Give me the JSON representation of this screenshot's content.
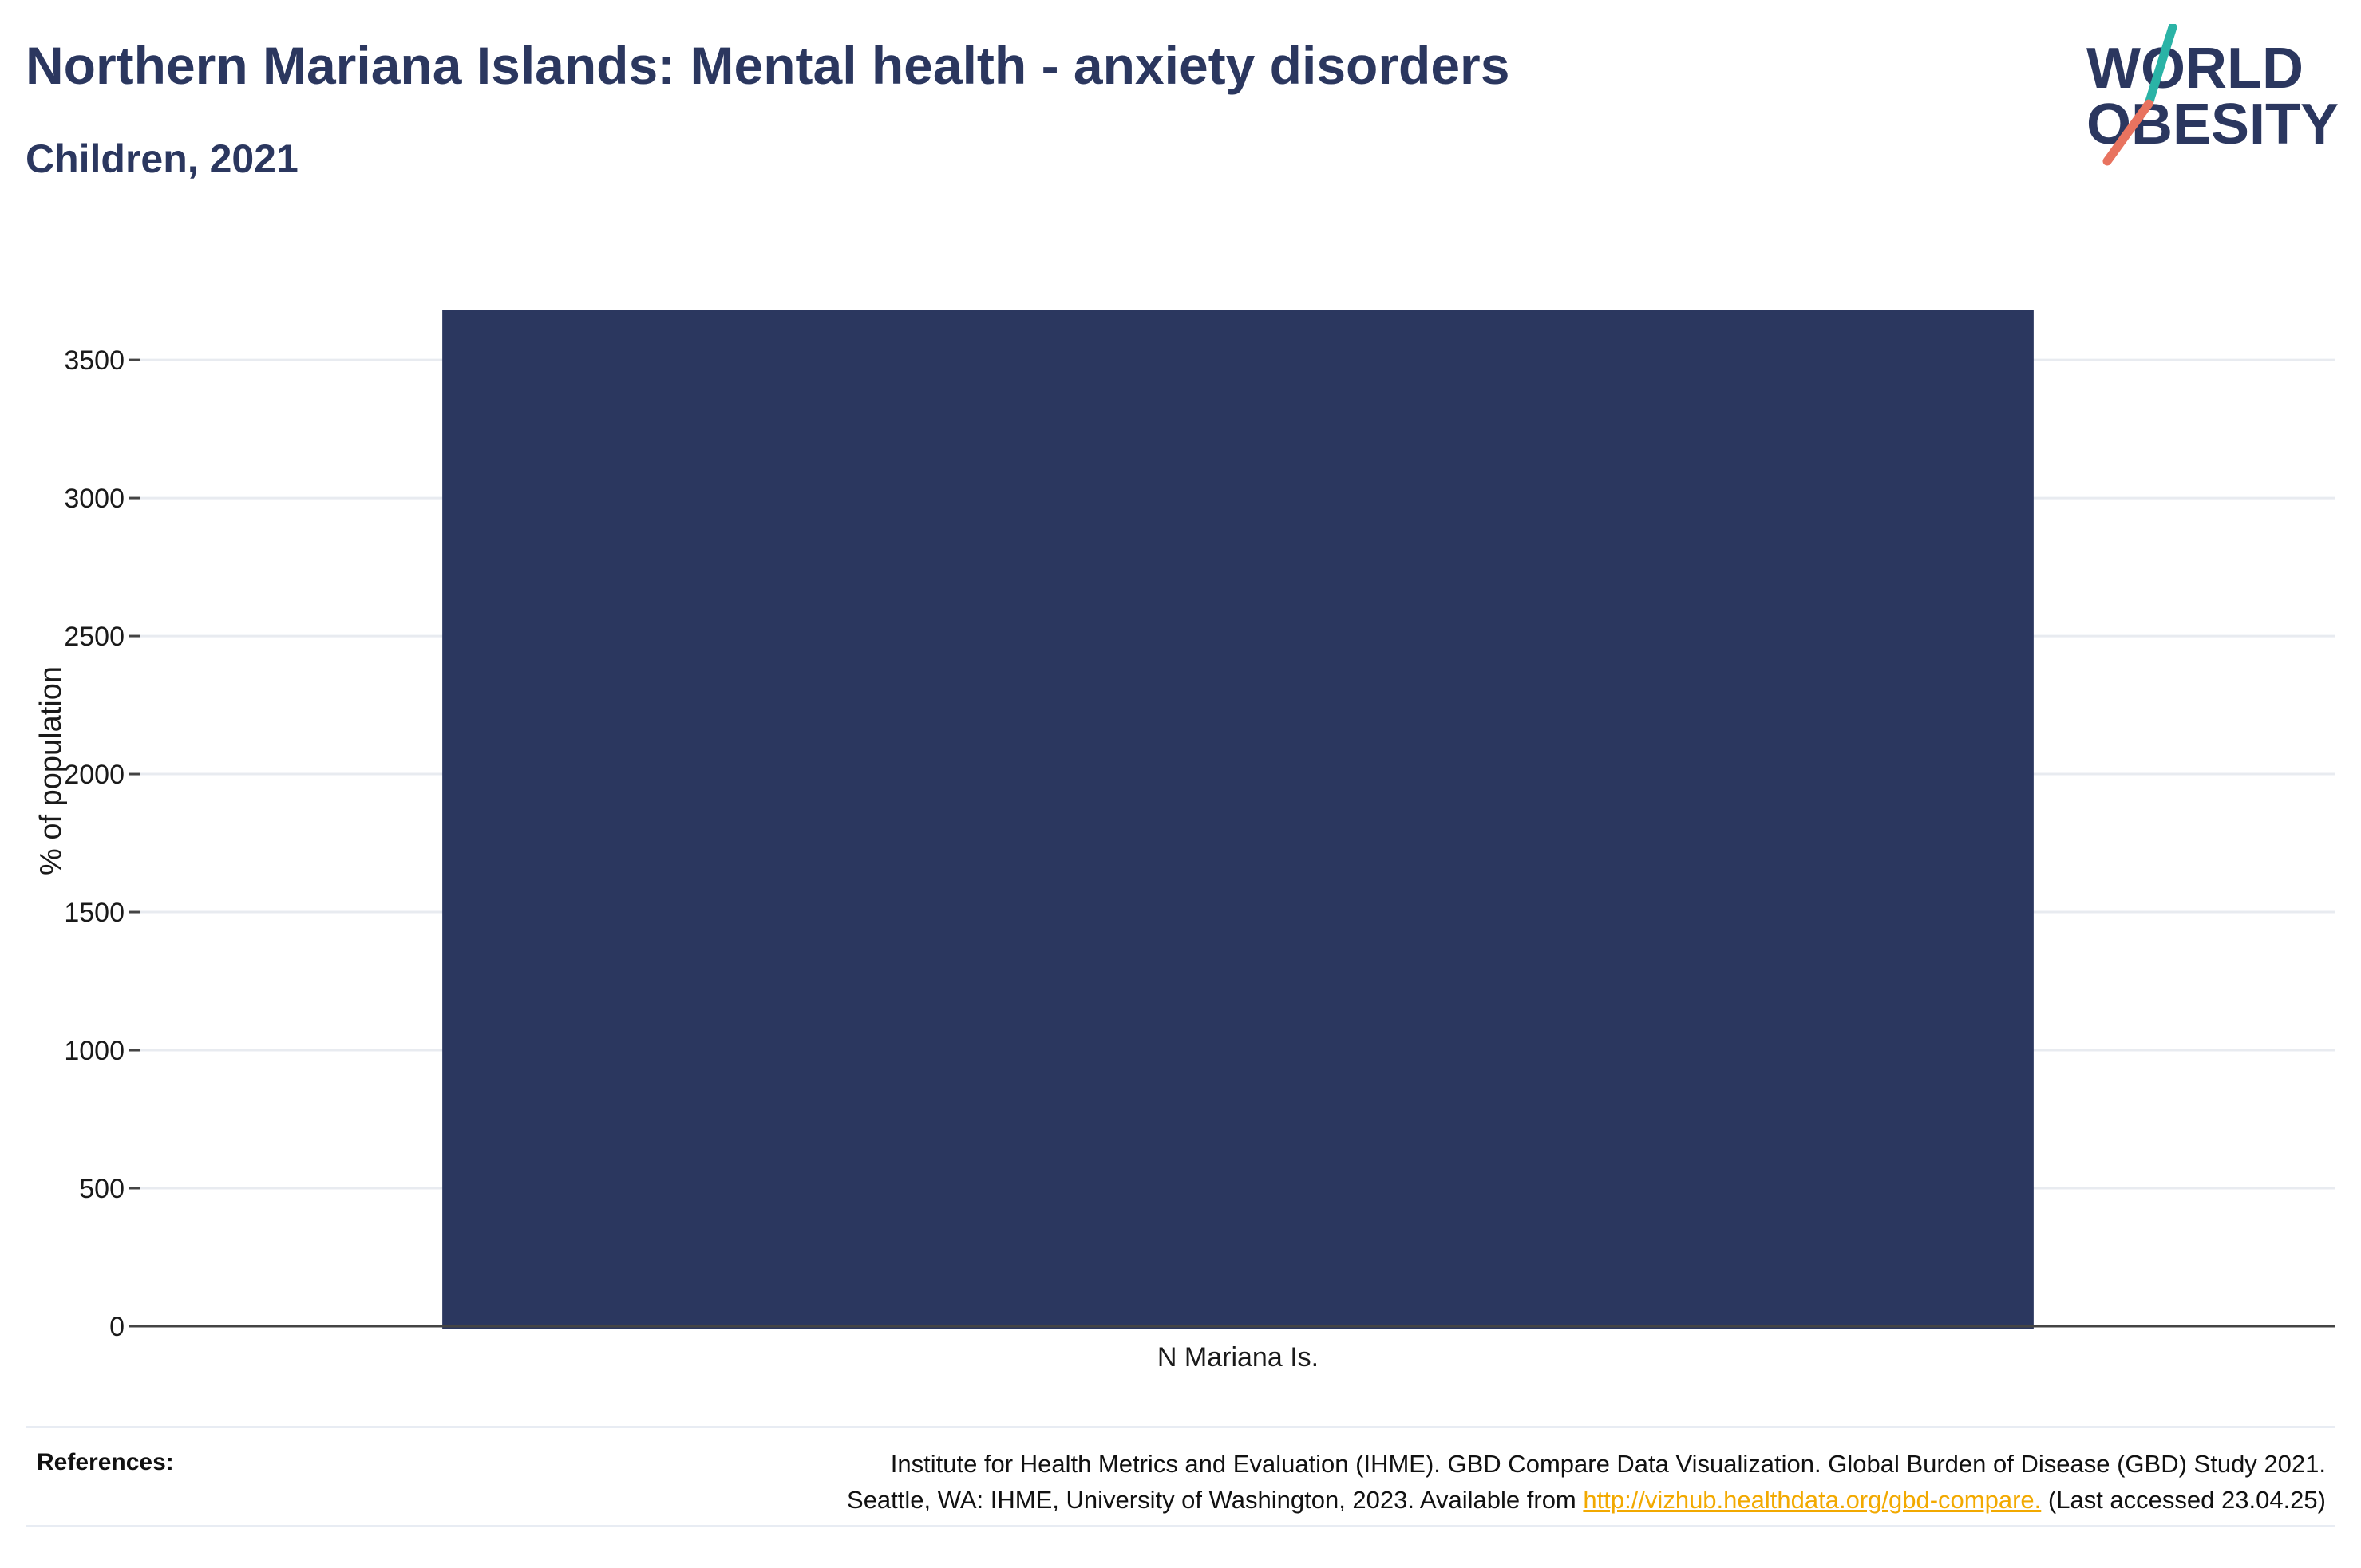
{
  "header": {
    "title": "Northern Mariana Islands: Mental health - anxiety disorders",
    "subtitle": "Children, 2021"
  },
  "logo": {
    "line1": "WORLD",
    "line2": "OBESITY",
    "colors": {
      "text": "#2b375f",
      "slash_top": "#2ab3a6",
      "slash_bottom": "#e8735f"
    }
  },
  "chart_data": {
    "type": "bar",
    "categories": [
      "N Mariana Is."
    ],
    "values": [
      3680
    ],
    "ylabel": "% of population",
    "ylim": [
      0,
      3850
    ],
    "yticks": [
      0,
      500,
      1000,
      1500,
      2000,
      2500,
      3000,
      3500
    ],
    "grid": true,
    "bar_color": "#2b375f"
  },
  "references": {
    "label": "References:",
    "line1": "Institute for Health Metrics and Evaluation (IHME). GBD Compare Data Visualization. Global Burden of Disease (GBD) Study 2021.",
    "line2_prefix": "Seattle, WA: IHME, University of Washington, 2023. Available from",
    "link_text": "http://vizhub.healthdata.org/gbd-compare.",
    "line2_suffix": "(Last accessed 23.04.25)"
  }
}
